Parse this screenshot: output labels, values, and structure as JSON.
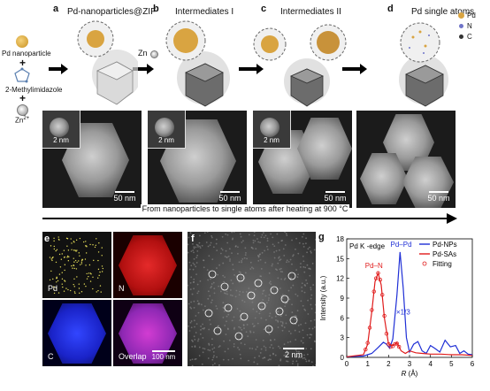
{
  "panels": {
    "a": {
      "letter": "a",
      "title": "Pd-nanoparticles@ZIF"
    },
    "b": {
      "letter": "b",
      "title": "Intermediates I"
    },
    "c": {
      "letter": "c",
      "title": "Intermediates II"
    },
    "d": {
      "letter": "d",
      "title": "Pd single atoms"
    },
    "e": {
      "letter": "e"
    },
    "f": {
      "letter": "f"
    },
    "g": {
      "letter": "g"
    }
  },
  "reagents": {
    "pd_np": "Pd nanoparticle",
    "plus1": "+",
    "mim": "2-Methylimidazole",
    "plus2": "+",
    "zn": "Zn",
    "zn_sup": "2+"
  },
  "zn_label": "Zn",
  "legend_d": {
    "pd": "Pd",
    "n": "N",
    "c": "C"
  },
  "colors": {
    "pd": "#d9a441",
    "n": "#6f74c8",
    "c": "#333333"
  },
  "tem": [
    {
      "inset": "2 nm",
      "scale": "50 nm"
    },
    {
      "inset": "2 nm",
      "scale": "50 nm"
    },
    {
      "inset": "2 nm",
      "scale": "50 nm"
    },
    {
      "scale": "50 nm"
    }
  ],
  "arrow_caption": "From nanoparticles to single atoms after heating at 900 °C",
  "maps": {
    "pd": "Pd",
    "n": "N",
    "c": "C",
    "overlap": "Overlap",
    "scale": "100 nm"
  },
  "haadf": {
    "scale": "2 nm"
  },
  "chart_data": {
    "type": "line",
    "title": "Pd K -edge",
    "xlabel_italic": "R",
    "xlabel_unit": "(Å)",
    "ylabel": "Intensity (a.u.)",
    "xlim": [
      0,
      6
    ],
    "ylim": [
      0,
      18
    ],
    "xticks": [
      0,
      1,
      2,
      3,
      4,
      5,
      6
    ],
    "yticks": [
      0,
      3,
      6,
      9,
      12,
      15,
      18
    ],
    "legend_position": "top-right",
    "series": [
      {
        "name": "Pd-NPs",
        "color": "#1f2fd6",
        "x": [
          0,
          0.8,
          1.2,
          1.5,
          1.75,
          1.9,
          2.05,
          2.2,
          2.4,
          2.55,
          2.7,
          2.85,
          3.0,
          3.2,
          3.4,
          3.6,
          3.8,
          4.0,
          4.2,
          4.45,
          4.7,
          4.95,
          5.2,
          5.4,
          5.6,
          5.8,
          6.0
        ],
        "y": [
          0.1,
          0.2,
          0.6,
          1.5,
          2.3,
          2.0,
          1.4,
          2.8,
          9.5,
          16.0,
          10.5,
          3.0,
          0.8,
          2.0,
          2.4,
          1.0,
          0.6,
          1.8,
          1.4,
          0.8,
          2.6,
          1.6,
          1.8,
          0.6,
          1.0,
          0.5,
          0.4
        ]
      },
      {
        "name": "Pd-SAs",
        "color": "#e01b1b",
        "x": [
          0,
          0.8,
          1.0,
          1.2,
          1.35,
          1.5,
          1.65,
          1.8,
          2.0,
          2.2,
          2.4,
          2.6,
          2.8,
          3.0,
          3.3,
          3.6,
          4.0,
          4.5,
          5.0,
          5.5,
          6.0
        ],
        "y": [
          0.1,
          0.4,
          2.0,
          7.0,
          11.5,
          12.8,
          11.0,
          6.0,
          2.0,
          1.8,
          2.2,
          1.0,
          0.6,
          1.0,
          0.7,
          0.6,
          0.5,
          0.5,
          0.4,
          0.4,
          0.3
        ]
      },
      {
        "name": "Fitting",
        "color": "#e01b1b",
        "marker": "circle-open",
        "x": [
          0.9,
          1.0,
          1.1,
          1.2,
          1.3,
          1.4,
          1.5,
          1.6,
          1.7,
          1.8,
          1.9,
          2.0,
          2.1,
          2.2,
          2.3,
          2.4,
          2.5
        ],
        "y": [
          1.2,
          2.2,
          4.5,
          7.2,
          10.0,
          12.0,
          12.8,
          11.8,
          9.5,
          6.3,
          3.6,
          2.0,
          1.6,
          1.7,
          2.0,
          2.1,
          1.6
        ]
      }
    ],
    "annotations": [
      {
        "text": "Pd–Pd",
        "color": "#1f2fd6",
        "x": 2.6,
        "y": 16.8
      },
      {
        "text": "Pd–N",
        "color": "#e01b1b",
        "x": 1.3,
        "y": 13.6
      },
      {
        "text": "×1/3",
        "color": "#1f2fd6",
        "x": 2.7,
        "y": 6.5
      }
    ]
  }
}
